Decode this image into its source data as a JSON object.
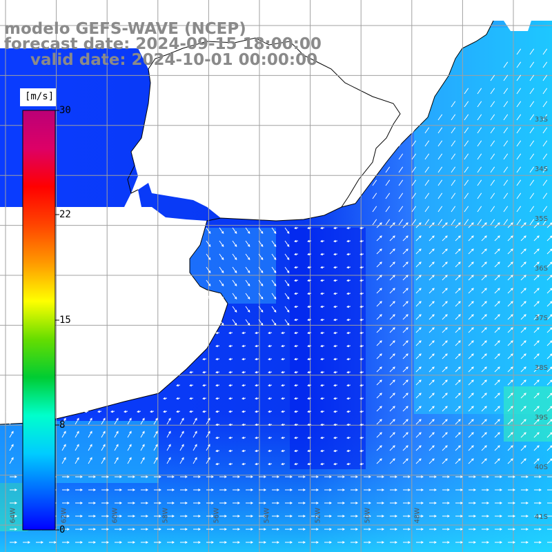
{
  "title": {
    "line1": "modelo GEFS-WAVE (NCEP)",
    "line2": "forecast date: 2024-09-15 18:00:00",
    "line3": "valid date: 2024-10-01 00:00:00"
  },
  "colorbar": {
    "unit": "[m/s]",
    "ticks": [
      "30",
      "22",
      "15",
      "8",
      "0"
    ],
    "colors": [
      "#0000ff",
      "#0066ff",
      "#00ccff",
      "#00ffcc",
      "#00cc33",
      "#66dd00",
      "#ffff00",
      "#ff9900",
      "#ff4400",
      "#ff0000",
      "#dd0066",
      "#bb0077"
    ]
  },
  "lat_labels": [
    "33S",
    "34S",
    "35S",
    "36S",
    "37S",
    "38S",
    "39S",
    "40S",
    "41S"
  ],
  "lon_labels": [
    "64W",
    "62W",
    "60W",
    "58W",
    "56W",
    "54W",
    "52W",
    "50W",
    "48W"
  ],
  "map": {
    "land_color": "#ffffff",
    "grid_color": "#a0a0a0",
    "arrow_color": "#ffffff",
    "coast_color": "#000000"
  }
}
